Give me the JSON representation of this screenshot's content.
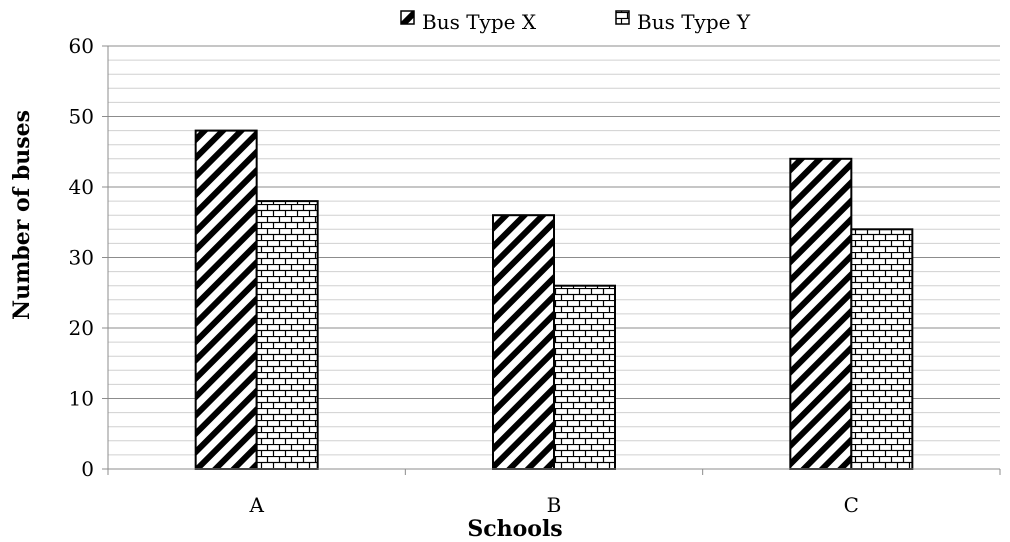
{
  "chart_data": {
    "type": "bar",
    "title": "",
    "xlabel": "Schools",
    "ylabel": "Number of buses",
    "categories": [
      "A",
      "B",
      "C"
    ],
    "series": [
      {
        "name": "Bus Type X",
        "values": [
          48,
          36,
          44
        ],
        "pattern": "diagonal-hatch"
      },
      {
        "name": "Bus Type Y",
        "values": [
          38,
          26,
          34
        ],
        "pattern": "brick"
      }
    ],
    "ylim": [
      0,
      60
    ],
    "y_ticks": [
      0,
      10,
      20,
      30,
      40,
      50,
      60
    ],
    "minor_step": 2,
    "grid": true,
    "legend_position": "top",
    "colors": {
      "bar_stroke": "#000000",
      "bar_fill": "#ffffff",
      "major_grid": "#8c8c8c",
      "minor_grid": "#d0d0d0"
    }
  }
}
